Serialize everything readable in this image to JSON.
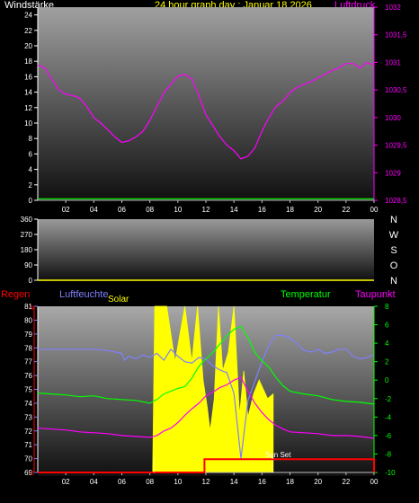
{
  "header": {
    "left_label": "Windstärke",
    "title": "24 hour graph day : Januar 18 2026",
    "right_label": "Luftdruck"
  },
  "colors": {
    "wind": "#ffffff",
    "pressure": "#ff00ff",
    "winddir": "#ffff00",
    "rain": "#ff0000",
    "humidity": "#8080ff",
    "solar": "#ffff00",
    "temperature": "#00ff00",
    "dewpoint": "#ff00ff",
    "axis_green": "#00ff00"
  },
  "time_axis": {
    "labels": [
      "02",
      "04",
      "06",
      "08",
      "10",
      "12",
      "14",
      "16",
      "18",
      "20",
      "22",
      "00"
    ]
  },
  "chart_data": [
    {
      "type": "line",
      "id": "top",
      "left_axis": {
        "ticks": [
          "0",
          "2",
          "4",
          "6",
          "8",
          "10",
          "12",
          "14",
          "16",
          "18",
          "20",
          "22",
          "24"
        ],
        "ylim": [
          0,
          25
        ]
      },
      "right_axis": {
        "ticks": [
          "1028,5",
          "1029",
          "1029,5",
          "1030",
          "1030,5",
          "1031",
          "1031,5",
          "1032"
        ],
        "ylim": [
          1028.5,
          1032
        ]
      },
      "x_range": [
        0,
        24
      ],
      "series": [
        {
          "name": "Windstärke",
          "axis": "left",
          "x": [
            0,
            24
          ],
          "y": [
            0.2,
            0.2
          ]
        },
        {
          "name": "Luftdruck",
          "axis": "right",
          "x": [
            0,
            0.5,
            1,
            1.5,
            2,
            2.5,
            3,
            3.5,
            4,
            4.5,
            5,
            5.5,
            6,
            6.5,
            7,
            7.5,
            8,
            8.5,
            9,
            9.5,
            10,
            10.5,
            11,
            11.5,
            12,
            12.5,
            13,
            13.5,
            14,
            14.5,
            15,
            15.5,
            16,
            16.5,
            17,
            17.5,
            18,
            18.5,
            19,
            19.5,
            20,
            20.5,
            21,
            21.5,
            22,
            22.5,
            23,
            23.5,
            24
          ],
          "y": [
            1030.95,
            1030.9,
            1030.7,
            1030.5,
            1030.42,
            1030.4,
            1030.35,
            1030.2,
            1030,
            1029.9,
            1029.78,
            1029.65,
            1029.55,
            1029.58,
            1029.65,
            1029.75,
            1029.95,
            1030.2,
            1030.45,
            1030.6,
            1030.75,
            1030.78,
            1030.7,
            1030.4,
            1030.05,
            1029.85,
            1029.65,
            1029.5,
            1029.4,
            1029.25,
            1029.3,
            1029.45,
            1029.75,
            1030,
            1030.2,
            1030.3,
            1030.45,
            1030.55,
            1030.6,
            1030.65,
            1030.72,
            1030.78,
            1030.85,
            1030.9,
            1030.98,
            1030.98,
            1030.9,
            1031,
            1030.95
          ]
        }
      ]
    },
    {
      "type": "line",
      "id": "winddir",
      "left_axis": {
        "ticks": [
          "0",
          "90",
          "180",
          "270",
          "360"
        ],
        "ylim": [
          0,
          360
        ]
      },
      "right_labels": [
        "N",
        "W",
        "S",
        "O",
        "N"
      ],
      "x_range": [
        0,
        24
      ],
      "series": [
        {
          "name": "winddir",
          "x": [
            0,
            24
          ],
          "y": [
            0,
            0
          ]
        }
      ]
    },
    {
      "type": "line",
      "id": "bottom",
      "labels": {
        "rain": "Regen",
        "humidity": "Luftfeuchte",
        "solar": "Solar",
        "temperature": "Temperatur",
        "dewpoint": "Taupunkt",
        "sunset": "Sun Set"
      },
      "left_axis": {
        "ticks": [
          "69",
          "70",
          "71",
          "72",
          "73",
          "74",
          "75",
          "76",
          "77",
          "78",
          "79",
          "80",
          "81"
        ],
        "ylim": [
          69,
          81
        ]
      },
      "right_axis": {
        "ticks": [
          "-10",
          "-8",
          "-6",
          "-4",
          "-2",
          "0",
          "2",
          "4",
          "6",
          "8"
        ],
        "ylim": [
          -10,
          8
        ]
      },
      "rain_axis": {
        "ticks": [
          "0",
          "5"
        ]
      },
      "x_range": [
        0,
        24
      ],
      "series": [
        {
          "name": "Luftfeuchte",
          "axis": "left",
          "x": [
            0,
            1,
            2,
            3,
            4,
            5,
            6,
            6.2,
            6.5,
            7,
            7.5,
            8,
            8.5,
            9,
            9.5,
            10,
            10.5,
            11,
            11.5,
            12,
            12.5,
            13,
            13.5,
            14,
            14.5,
            15,
            15.5,
            16,
            16.5,
            17,
            17.5,
            18,
            18.5,
            19,
            19.5,
            20,
            20.5,
            21,
            21.5,
            22,
            22.5,
            23,
            23.5,
            24
          ],
          "y": [
            77.9,
            77.9,
            77.9,
            77.9,
            77.9,
            77.8,
            77.6,
            77.1,
            77.4,
            77.2,
            77.5,
            77.3,
            77.6,
            77.1,
            77.9,
            77.4,
            77,
            76.9,
            77.3,
            77.2,
            76.7,
            76.4,
            76.2,
            74.7,
            70,
            74.2,
            75.6,
            77,
            78.2,
            78.9,
            78.9,
            78.7,
            78.3,
            77.8,
            77.7,
            77.9,
            77.6,
            77.7,
            77.9,
            77.9,
            77.4,
            77.2,
            77.3,
            77.5
          ]
        },
        {
          "name": "Temperatur",
          "axis": "right",
          "x": [
            0,
            1,
            2,
            3,
            4,
            5,
            6,
            7,
            8,
            8.5,
            9,
            9.5,
            10,
            10.5,
            11,
            11.5,
            12,
            12.5,
            13,
            13.5,
            14,
            14.5,
            15,
            15.5,
            16,
            16.5,
            17,
            17.5,
            18,
            19,
            20,
            21,
            22,
            23,
            24
          ],
          "y": [
            -1.4,
            -1.5,
            -1.6,
            -1.8,
            -1.7,
            -2,
            -2.1,
            -2.2,
            -2.5,
            -2.1,
            -1.5,
            -1.2,
            -0.9,
            -0.7,
            0.2,
            1.5,
            2.3,
            3,
            3.9,
            4.8,
            5.5,
            5.8,
            4.6,
            3,
            2.1,
            1.4,
            0.3,
            -0.6,
            -1.2,
            -1.5,
            -1.7,
            -2.1,
            -2.3,
            -2.4,
            -2.6
          ]
        },
        {
          "name": "Taupunkt",
          "axis": "right",
          "x": [
            0,
            1,
            2,
            3,
            4,
            5,
            6,
            7,
            8,
            8.5,
            9,
            9.5,
            10,
            10.5,
            11,
            11.5,
            12,
            12.5,
            13,
            13.5,
            14,
            14.5,
            15,
            15.5,
            16,
            16.5,
            17,
            17.5,
            18,
            19,
            20,
            21,
            22,
            23,
            24
          ],
          "y": [
            -5.2,
            -5.3,
            -5.4,
            -5.6,
            -5.7,
            -5.8,
            -6,
            -6.1,
            -6.2,
            -6,
            -5.5,
            -5.2,
            -4.6,
            -3.8,
            -3.1,
            -2.5,
            -1.7,
            -1.3,
            -0.8,
            -0.5,
            0,
            0.3,
            -1.2,
            -2.5,
            -3.5,
            -4.3,
            -4.9,
            -5.3,
            -5.6,
            -5.7,
            -5.8,
            -6,
            -6,
            -6.1,
            -6.3
          ]
        },
        {
          "name": "Solar",
          "axis": "right",
          "x": [
            0,
            8.2,
            8.35,
            9.2,
            9.8,
            10.5,
            11,
            11.4,
            11.8,
            12.1,
            12.3,
            12.6,
            12.9,
            13.2,
            13.6,
            14,
            14.4,
            14.7,
            15,
            15.4,
            15.8,
            16.4,
            16.8,
            16.8,
            24
          ],
          "y": [
            -10,
            -10,
            8,
            8,
            2,
            8,
            2,
            8,
            0,
            -3,
            -5.5,
            -2,
            8,
            1,
            3,
            8,
            -3.8,
            1,
            -4,
            -1.5,
            0,
            -2,
            -1.5,
            -10,
            -10
          ]
        },
        {
          "name": "Regen",
          "axis": "rain",
          "x": [
            0,
            11.9,
            11.9,
            24,
            24
          ],
          "y": [
            0,
            0,
            0.4,
            0.4,
            0
          ]
        }
      ]
    }
  ]
}
